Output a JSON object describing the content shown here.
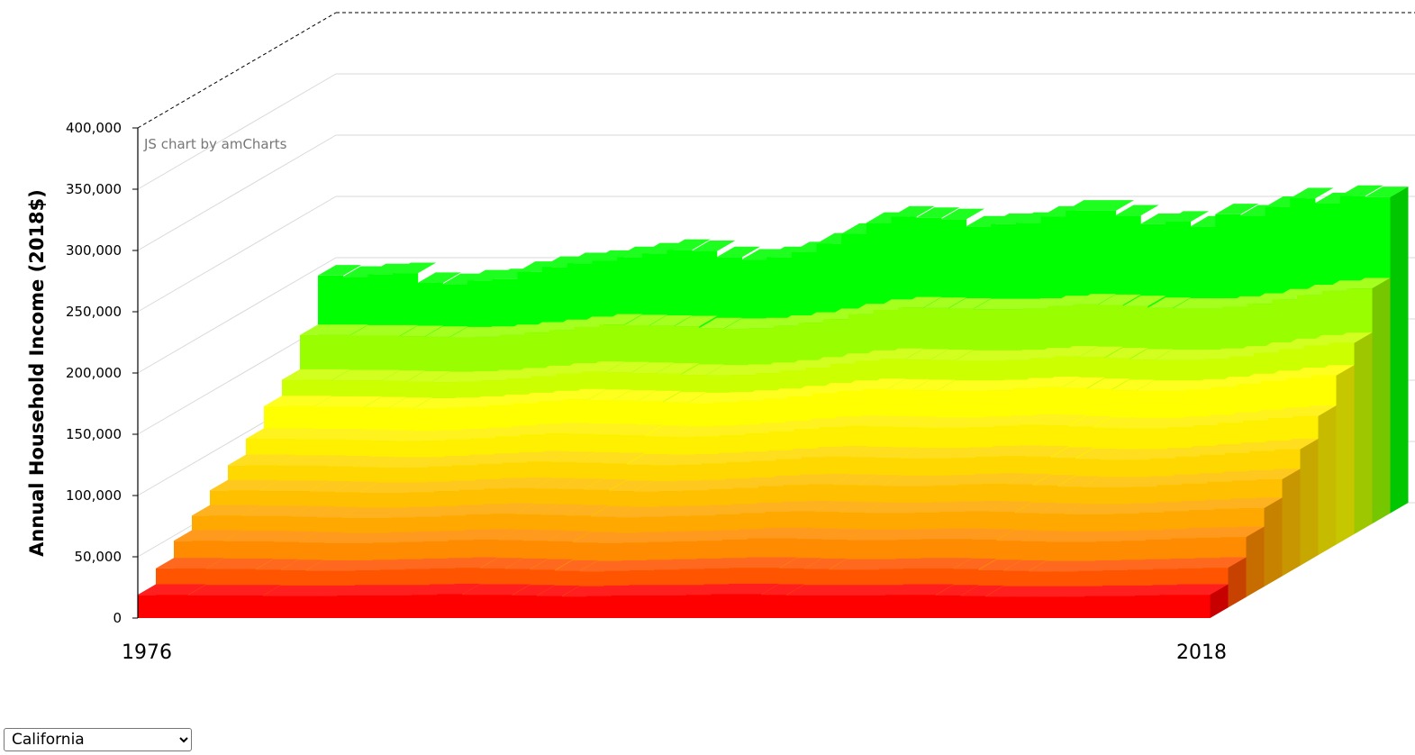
{
  "chart_data": {
    "type": "bar",
    "subtype": "stacked-3d-depth",
    "ylabel": "Annual Household Income (2018$)",
    "ylim": [
      0,
      400000
    ],
    "yticks": [
      0,
      50000,
      100000,
      150000,
      200000,
      250000,
      300000,
      350000,
      400000
    ],
    "ytick_labels": [
      "0",
      "50,000",
      "100,000",
      "150,000",
      "200,000",
      "250,000",
      "300,000",
      "350,000",
      "400,000"
    ],
    "x_start_label": "1976",
    "x_end_label": "2018",
    "x": [
      1976,
      1977,
      1978,
      1979,
      1980,
      1981,
      1982,
      1983,
      1984,
      1985,
      1986,
      1987,
      1988,
      1989,
      1990,
      1991,
      1992,
      1993,
      1994,
      1995,
      1996,
      1997,
      1998,
      1999,
      2000,
      2001,
      2002,
      2003,
      2004,
      2005,
      2006,
      2007,
      2008,
      2009,
      2010,
      2011,
      2012,
      2013,
      2014,
      2015,
      2016,
      2017,
      2018
    ],
    "grid": true,
    "credit": "JS chart by amCharts",
    "series": [
      {
        "color": "#ff0000",
        "values": [
          19000,
          19000,
          18500,
          18500,
          18500,
          18000,
          18000,
          18000,
          18500,
          18500,
          18500,
          19000,
          19500,
          19000,
          19000,
          18500,
          18000,
          17500,
          18000,
          18500,
          18500,
          18500,
          19000,
          19500,
          19500,
          19000,
          18500,
          18500,
          18500,
          18500,
          19000,
          19000,
          18500,
          18000,
          17500,
          17500,
          17500,
          17500,
          18000,
          18000,
          18500,
          19000,
          19000
        ]
      },
      {
        "color": "#ff5500",
        "values": [
          32000,
          32000,
          31500,
          31500,
          31000,
          30500,
          30000,
          30000,
          30500,
          31000,
          31500,
          32000,
          32500,
          32000,
          31500,
          31000,
          30000,
          29500,
          30000,
          30500,
          31000,
          31500,
          32000,
          32500,
          32500,
          32000,
          31500,
          31000,
          31000,
          31500,
          32000,
          32000,
          31500,
          30500,
          30000,
          29500,
          29500,
          30000,
          30500,
          31000,
          31500,
          32000,
          32500
        ]
      },
      {
        "color": "#ff8c00",
        "values": [
          46000,
          46000,
          45500,
          45500,
          45000,
          44500,
          44000,
          44000,
          44500,
          45000,
          45500,
          46500,
          47000,
          46500,
          46000,
          45500,
          44500,
          44000,
          44500,
          45000,
          45500,
          46000,
          47000,
          48000,
          48000,
          47500,
          47000,
          46500,
          46500,
          47000,
          47500,
          47500,
          47000,
          46000,
          45500,
          45000,
          45000,
          45500,
          46000,
          47000,
          48000,
          48500,
          49000
        ]
      },
      {
        "color": "#ffa800",
        "values": [
          58000,
          58000,
          57500,
          57500,
          57000,
          56500,
          56000,
          56000,
          56500,
          57000,
          58000,
          59000,
          59500,
          59000,
          58500,
          58000,
          57000,
          56500,
          57000,
          57500,
          58000,
          59000,
          60000,
          61000,
          61500,
          61000,
          60500,
          60000,
          60000,
          60500,
          61000,
          61500,
          61000,
          60000,
          59500,
          59000,
          59000,
          59500,
          60500,
          61500,
          62500,
          63500,
          64000
        ]
      },
      {
        "color": "#ffc000",
        "values": [
          70000,
          70000,
          69500,
          69500,
          69000,
          68500,
          68000,
          68000,
          68500,
          69500,
          70500,
          71500,
          72000,
          71500,
          71000,
          70500,
          69500,
          69000,
          69500,
          70000,
          71000,
          72000,
          73500,
          74500,
          75000,
          74500,
          74000,
          73500,
          73500,
          74000,
          75000,
          75500,
          75000,
          74000,
          73000,
          72500,
          72500,
          73000,
          74500,
          75500,
          77000,
          78000,
          79000
        ]
      },
      {
        "color": "#ffd800",
        "values": [
          82000,
          82000,
          81500,
          81500,
          81000,
          80500,
          80000,
          80000,
          81000,
          82000,
          83000,
          84000,
          85000,
          84500,
          84000,
          83500,
          82500,
          82000,
          82500,
          83500,
          84500,
          85500,
          87000,
          88500,
          89000,
          88500,
          88000,
          87500,
          87500,
          88000,
          89000,
          89500,
          89000,
          88000,
          87000,
          86500,
          86500,
          87500,
          89000,
          90500,
          92000,
          93500,
          95000
        ]
      },
      {
        "color": "#fff000",
        "values": [
          95000,
          95000,
          94500,
          94500,
          94000,
          93500,
          93000,
          93500,
          94500,
          95500,
          97000,
          98500,
          99500,
          99000,
          98500,
          98000,
          97000,
          96500,
          97000,
          98000,
          99500,
          101000,
          103000,
          104500,
          105500,
          105000,
          104500,
          104000,
          104000,
          104500,
          105500,
          106500,
          106000,
          105000,
          104000,
          103500,
          103500,
          104500,
          106000,
          108000,
          110000,
          112000,
          113500
        ]
      },
      {
        "color": "#ffff00",
        "values": [
          113000,
          113000,
          112500,
          112500,
          112000,
          111500,
          111000,
          111500,
          112500,
          114000,
          115500,
          117000,
          118500,
          118000,
          117500,
          117000,
          116000,
          115500,
          116000,
          117500,
          119000,
          121000,
          123500,
          125500,
          127000,
          126500,
          126000,
          125500,
          125500,
          126000,
          127500,
          128500,
          128000,
          127000,
          126000,
          125500,
          125500,
          126500,
          128500,
          131000,
          133500,
          136000,
          138000
        ]
      },
      {
        "color": "#ccff00",
        "values": [
          126000,
          126000,
          125500,
          125500,
          125000,
          124500,
          124000,
          124500,
          125500,
          127000,
          129000,
          131000,
          132500,
          132000,
          131500,
          131000,
          130000,
          129500,
          130000,
          131500,
          133500,
          136000,
          139000,
          141500,
          143000,
          142500,
          142000,
          141500,
          141500,
          142000,
          143500,
          145000,
          144500,
          143500,
          142500,
          142000,
          142000,
          143000,
          145000,
          148000,
          151000,
          154000,
          156000
        ]
      },
      {
        "color": "#99ff00",
        "values": [
          154000,
          154000,
          153500,
          153500,
          153000,
          152500,
          152000,
          152500,
          154000,
          156000,
          158000,
          160500,
          162500,
          162000,
          161500,
          161000,
          159500,
          159000,
          159500,
          161500,
          164000,
          167000,
          171000,
          174500,
          176500,
          176000,
          175500,
          175000,
          175000,
          175500,
          177500,
          179000,
          178500,
          177500,
          176000,
          175500,
          175500,
          177000,
          179500,
          183000,
          186500,
          190000,
          192000
        ]
      },
      {
        "color": "#00ff00",
        "values": [
          194000,
          193000,
          195000,
          196000,
          188000,
          187000,
          190000,
          191000,
          197000,
          201000,
          204000,
          206000,
          209000,
          212000,
          215000,
          214000,
          209000,
          207000,
          209000,
          213000,
          220000,
          228000,
          237000,
          242000,
          241000,
          240000,
          234000,
          236000,
          237000,
          242000,
          247000,
          247000,
          243000,
          236000,
          238000,
          234000,
          244000,
          243000,
          250000,
          257000,
          253000,
          259000,
          258000
        ]
      }
    ]
  },
  "region_select": {
    "selected": "California",
    "options": [
      "California"
    ]
  }
}
